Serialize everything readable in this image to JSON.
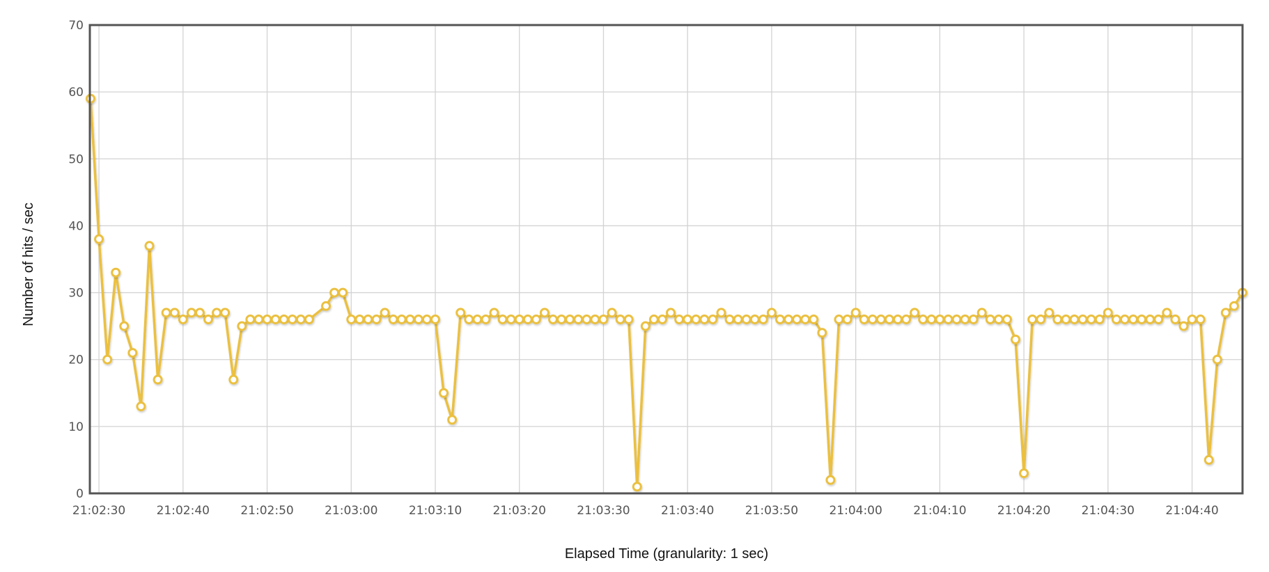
{
  "chart_data": {
    "type": "line",
    "title": "",
    "xlabel": "Elapsed Time (granularity: 1 sec)",
    "ylabel": "Number of hits / sec",
    "ylim": [
      0,
      70
    ],
    "xlim": [
      "21:02:29",
      "21:04:46"
    ],
    "grid": true,
    "legend": "none",
    "y_ticks": [
      "0",
      "10",
      "20",
      "30",
      "40",
      "50",
      "60",
      "70"
    ],
    "x_ticks": [
      "21:02:30",
      "21:02:40",
      "21:02:50",
      "21:03:00",
      "21:03:10",
      "21:03:20",
      "21:03:30",
      "21:03:40",
      "21:03:50",
      "21:04:00",
      "21:04:10",
      "21:04:20",
      "21:04:30",
      "21:04:40"
    ],
    "colors": {
      "line": "#EBC03F",
      "marker_fill": "#ffffff",
      "grid": "#d3d3d3",
      "frame": "#545454"
    },
    "series": [
      {
        "points": [
          [
            "21:02:29",
            59
          ],
          [
            "21:02:30",
            38
          ],
          [
            "21:02:31",
            20
          ],
          [
            "21:02:32",
            33
          ],
          [
            "21:02:33",
            25
          ],
          [
            "21:02:34",
            21
          ],
          [
            "21:02:35",
            13
          ],
          [
            "21:02:36",
            37
          ],
          [
            "21:02:37",
            17
          ],
          [
            "21:02:38",
            27
          ],
          [
            "21:02:39",
            27
          ],
          [
            "21:02:40",
            26
          ],
          [
            "21:02:41",
            27
          ],
          [
            "21:02:42",
            27
          ],
          [
            "21:02:43",
            26
          ],
          [
            "21:02:44",
            27
          ],
          [
            "21:02:45",
            27
          ],
          [
            "21:02:46",
            17
          ],
          [
            "21:02:47",
            25
          ],
          [
            "21:02:48",
            26
          ],
          [
            "21:02:49",
            26
          ],
          [
            "21:02:50",
            26
          ],
          [
            "21:02:51",
            26
          ],
          [
            "21:02:52",
            26
          ],
          [
            "21:02:53",
            26
          ],
          [
            "21:02:54",
            26
          ],
          [
            "21:02:55",
            26
          ],
          [
            "21:02:57",
            28
          ],
          [
            "21:02:58",
            30
          ],
          [
            "21:02:59",
            30
          ],
          [
            "21:03:00",
            26
          ],
          [
            "21:03:01",
            26
          ],
          [
            "21:03:02",
            26
          ],
          [
            "21:03:03",
            26
          ],
          [
            "21:03:04",
            27
          ],
          [
            "21:03:05",
            26
          ],
          [
            "21:03:06",
            26
          ],
          [
            "21:03:07",
            26
          ],
          [
            "21:03:08",
            26
          ],
          [
            "21:03:09",
            26
          ],
          [
            "21:03:10",
            26
          ],
          [
            "21:03:11",
            15
          ],
          [
            "21:03:12",
            11
          ],
          [
            "21:03:13",
            27
          ],
          [
            "21:03:14",
            26
          ],
          [
            "21:03:15",
            26
          ],
          [
            "21:03:16",
            26
          ],
          [
            "21:03:17",
            27
          ],
          [
            "21:03:18",
            26
          ],
          [
            "21:03:19",
            26
          ],
          [
            "21:03:20",
            26
          ],
          [
            "21:03:21",
            26
          ],
          [
            "21:03:22",
            26
          ],
          [
            "21:03:23",
            27
          ],
          [
            "21:03:24",
            26
          ],
          [
            "21:03:25",
            26
          ],
          [
            "21:03:26",
            26
          ],
          [
            "21:03:27",
            26
          ],
          [
            "21:03:28",
            26
          ],
          [
            "21:03:29",
            26
          ],
          [
            "21:03:30",
            26
          ],
          [
            "21:03:31",
            27
          ],
          [
            "21:03:32",
            26
          ],
          [
            "21:03:33",
            26
          ],
          [
            "21:03:34",
            1
          ],
          [
            "21:03:35",
            25
          ],
          [
            "21:03:36",
            26
          ],
          [
            "21:03:37",
            26
          ],
          [
            "21:03:38",
            27
          ],
          [
            "21:03:39",
            26
          ],
          [
            "21:03:40",
            26
          ],
          [
            "21:03:41",
            26
          ],
          [
            "21:03:42",
            26
          ],
          [
            "21:03:43",
            26
          ],
          [
            "21:03:44",
            27
          ],
          [
            "21:03:45",
            26
          ],
          [
            "21:03:46",
            26
          ],
          [
            "21:03:47",
            26
          ],
          [
            "21:03:48",
            26
          ],
          [
            "21:03:49",
            26
          ],
          [
            "21:03:50",
            27
          ],
          [
            "21:03:51",
            26
          ],
          [
            "21:03:52",
            26
          ],
          [
            "21:03:53",
            26
          ],
          [
            "21:03:54",
            26
          ],
          [
            "21:03:55",
            26
          ],
          [
            "21:03:56",
            24
          ],
          [
            "21:03:57",
            2
          ],
          [
            "21:03:58",
            26
          ],
          [
            "21:03:59",
            26
          ],
          [
            "21:04:00",
            27
          ],
          [
            "21:04:01",
            26
          ],
          [
            "21:04:02",
            26
          ],
          [
            "21:04:03",
            26
          ],
          [
            "21:04:04",
            26
          ],
          [
            "21:04:05",
            26
          ],
          [
            "21:04:06",
            26
          ],
          [
            "21:04:07",
            27
          ],
          [
            "21:04:08",
            26
          ],
          [
            "21:04:09",
            26
          ],
          [
            "21:04:10",
            26
          ],
          [
            "21:04:11",
            26
          ],
          [
            "21:04:12",
            26
          ],
          [
            "21:04:13",
            26
          ],
          [
            "21:04:14",
            26
          ],
          [
            "21:04:15",
            27
          ],
          [
            "21:04:16",
            26
          ],
          [
            "21:04:17",
            26
          ],
          [
            "21:04:18",
            26
          ],
          [
            "21:04:19",
            23
          ],
          [
            "21:04:20",
            3
          ],
          [
            "21:04:21",
            26
          ],
          [
            "21:04:22",
            26
          ],
          [
            "21:04:23",
            27
          ],
          [
            "21:04:24",
            26
          ],
          [
            "21:04:25",
            26
          ],
          [
            "21:04:26",
            26
          ],
          [
            "21:04:27",
            26
          ],
          [
            "21:04:28",
            26
          ],
          [
            "21:04:29",
            26
          ],
          [
            "21:04:30",
            27
          ],
          [
            "21:04:31",
            26
          ],
          [
            "21:04:32",
            26
          ],
          [
            "21:04:33",
            26
          ],
          [
            "21:04:34",
            26
          ],
          [
            "21:04:35",
            26
          ],
          [
            "21:04:36",
            26
          ],
          [
            "21:04:37",
            27
          ],
          [
            "21:04:38",
            26
          ],
          [
            "21:04:39",
            25
          ],
          [
            "21:04:40",
            26
          ],
          [
            "21:04:41",
            26
          ],
          [
            "21:04:42",
            5
          ],
          [
            "21:04:43",
            20
          ],
          [
            "21:04:44",
            27
          ],
          [
            "21:04:45",
            28
          ],
          [
            "21:04:46",
            30
          ]
        ]
      }
    ]
  }
}
